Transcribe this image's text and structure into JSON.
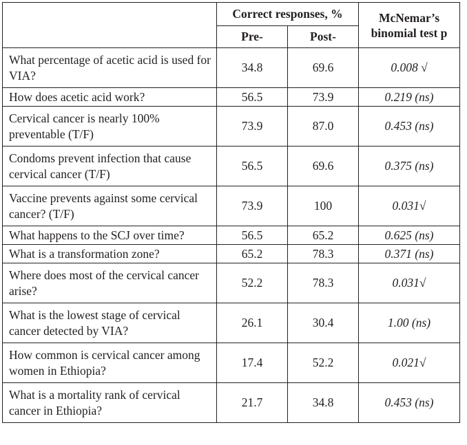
{
  "header": {
    "correct_responses": "Correct responses, %",
    "mcnemar": "McNemar’s binomial test p",
    "pre": "Pre-",
    "post": "Post-"
  },
  "rows": [
    {
      "question": "What percentage of acetic acid is used for VIA?",
      "pre": "34.8",
      "post": "69.6",
      "p": "0.008 √"
    },
    {
      "question": "How does acetic acid work?",
      "pre": "56.5",
      "post": "73.9",
      "p": "0.219 (ns)"
    },
    {
      "question": "Cervical cancer is nearly 100% preventable (T/F)",
      "pre": "73.9",
      "post": "87.0",
      "p": "0.453 (ns)"
    },
    {
      "question": "Condoms prevent infection that cause cervical cancer (T/F)",
      "pre": "56.5",
      "post": "69.6",
      "p": "0.375 (ns)"
    },
    {
      "question": "Vaccine prevents against some cervical cancer? (T/F)",
      "pre": "73.9",
      "post": "100",
      "p": "0.031√"
    },
    {
      "question": "What happens to the SCJ over time?",
      "pre": "56.5",
      "post": "65.2",
      "p": "0.625 (ns)"
    },
    {
      "question": "What is a transformation zone?",
      "pre": "65.2",
      "post": "78.3",
      "p": "0.371 (ns)"
    },
    {
      "question": "Where does most of the cervical cancer arise?",
      "pre": "52.2",
      "post": "78.3",
      "p": "0.031√"
    },
    {
      "question": "What is the lowest stage of cervical cancer detected by VIA?",
      "pre": "26.1",
      "post": "30.4",
      "p": "1.00 (ns)"
    },
    {
      "question": "How common is cervical cancer among women in Ethiopia?",
      "pre": "17.4",
      "post": "52.2",
      "p": "0.021√"
    },
    {
      "question": "What is a mortality rank of cervical cancer in Ethiopia?",
      "pre": "21.7",
      "post": "34.8",
      "p": "0.453 (ns)"
    }
  ]
}
